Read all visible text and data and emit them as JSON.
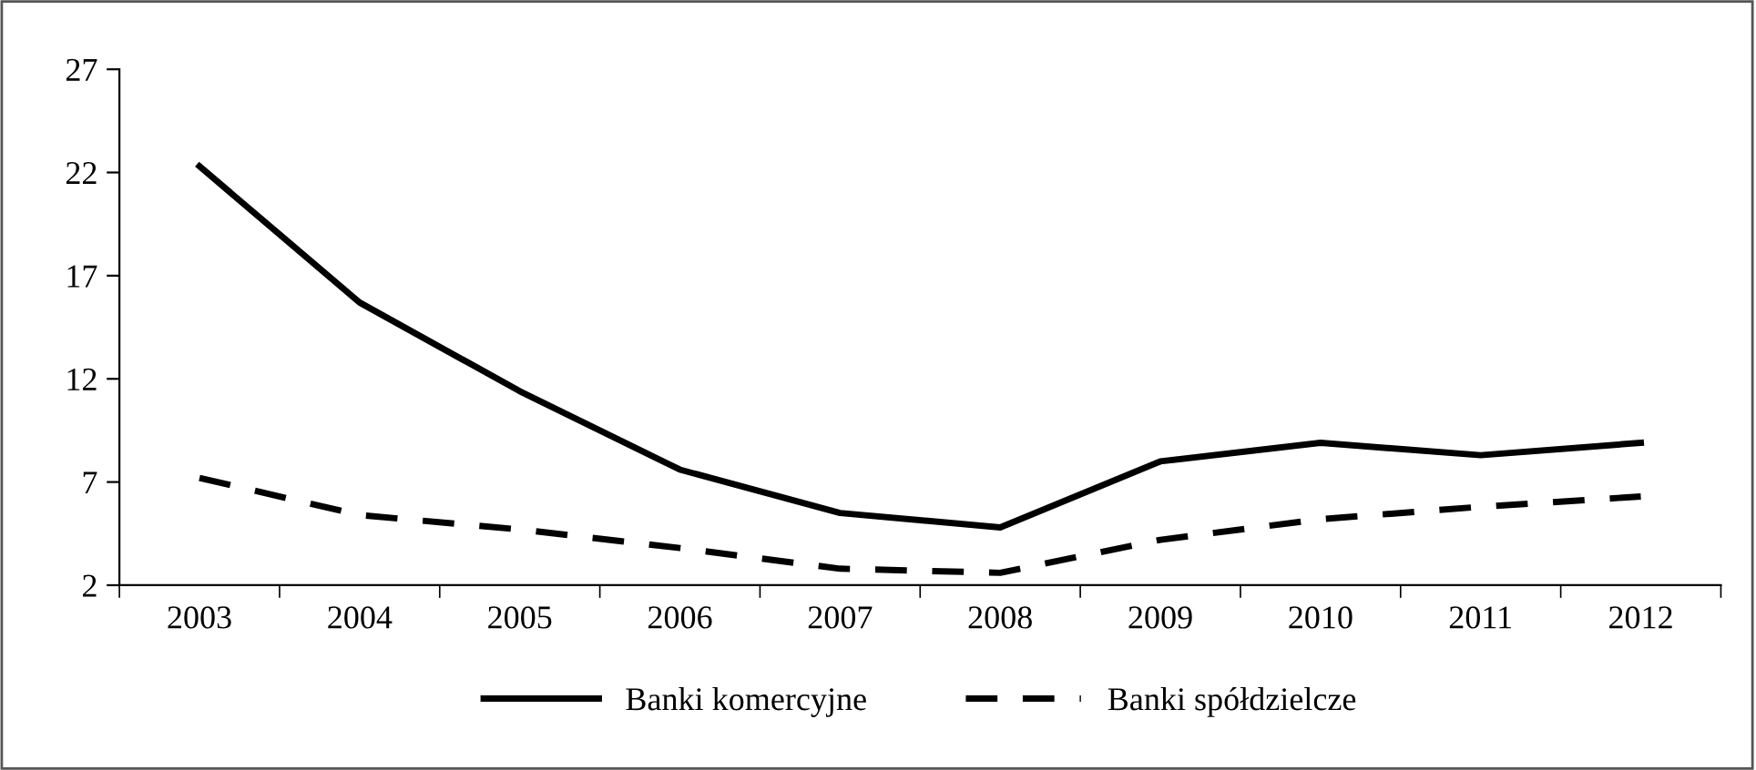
{
  "chart_data": {
    "type": "line",
    "categories": [
      "2003",
      "2004",
      "2005",
      "2006",
      "2007",
      "2008",
      "2009",
      "2010",
      "2011",
      "2012"
    ],
    "series": [
      {
        "name": "Banki komercyjne",
        "color": "#000000",
        "line_style": "solid",
        "values": [
          22.3,
          15.7,
          11.4,
          7.6,
          5.5,
          4.8,
          8.0,
          8.9,
          8.3,
          8.9
        ]
      },
      {
        "name": "Banki spółdzielcze",
        "color": "#000000",
        "line_style": "dashed",
        "values": [
          7.2,
          5.4,
          4.7,
          3.8,
          2.8,
          2.6,
          4.2,
          5.2,
          5.8,
          6.3
        ]
      }
    ],
    "ylim": [
      2,
      27
    ],
    "yticks": [
      2,
      7,
      12,
      17,
      22,
      27
    ],
    "grid": false,
    "legend": "bottom",
    "marker": "none"
  }
}
